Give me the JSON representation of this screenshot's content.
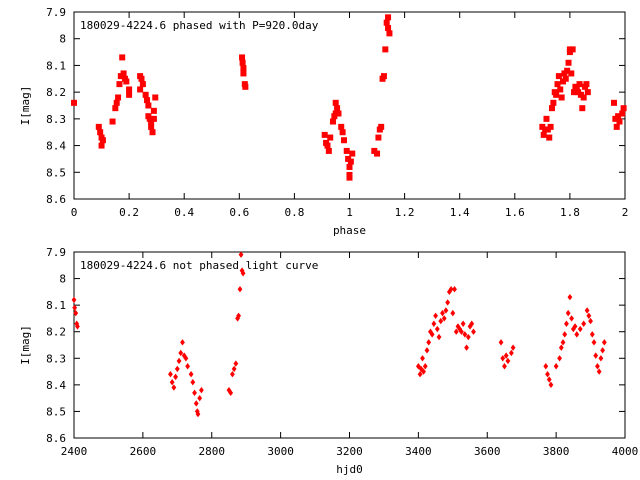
{
  "chart_data": [
    {
      "type": "scatter",
      "title": "180029-4224.6 phased with P=920.0day",
      "xlabel": "phase",
      "ylabel": "I[mag]",
      "xlim": [
        0,
        2
      ],
      "ylim": [
        8.6,
        7.9
      ],
      "y_inverted": true,
      "xticks": [
        "0",
        "0.2",
        "0.4",
        "0.6",
        "0.8",
        "1",
        "1.2",
        "1.4",
        "1.6",
        "1.8",
        "2"
      ],
      "xtick_values": [
        0,
        0.2,
        0.4,
        0.6,
        0.8,
        1.0,
        1.2,
        1.4,
        1.6,
        1.8,
        2.0
      ],
      "yticks": [
        "7.9",
        "8",
        "8.1",
        "8.2",
        "8.3",
        "8.4",
        "8.5",
        "8.6"
      ],
      "ytick_values": [
        7.9,
        8.0,
        8.1,
        8.2,
        8.3,
        8.4,
        8.5,
        8.6
      ],
      "grid": false,
      "marker_color": "#ff0000",
      "series": [
        {
          "points": [
            [
              0.0,
              8.24
            ],
            [
              0.09,
              8.33
            ],
            [
              0.095,
              8.35
            ],
            [
              0.1,
              8.37
            ],
            [
              0.1,
              8.4
            ],
            [
              0.105,
              8.38
            ],
            [
              0.14,
              8.31
            ],
            [
              0.15,
              8.26
            ],
            [
              0.155,
              8.24
            ],
            [
              0.16,
              8.22
            ],
            [
              0.165,
              8.17
            ],
            [
              0.17,
              8.14
            ],
            [
              0.175,
              8.07
            ],
            [
              0.18,
              8.13
            ],
            [
              0.185,
              8.15
            ],
            [
              0.19,
              8.16
            ],
            [
              0.2,
              8.19
            ],
            [
              0.2,
              8.21
            ],
            [
              0.24,
              8.19
            ],
            [
              0.24,
              8.14
            ],
            [
              0.245,
              8.15
            ],
            [
              0.25,
              8.17
            ],
            [
              0.26,
              8.21
            ],
            [
              0.265,
              8.23
            ],
            [
              0.27,
              8.25
            ],
            [
              0.27,
              8.29
            ],
            [
              0.275,
              8.3
            ],
            [
              0.28,
              8.31
            ],
            [
              0.28,
              8.33
            ],
            [
              0.285,
              8.35
            ],
            [
              0.29,
              8.3
            ],
            [
              0.29,
              8.27
            ],
            [
              0.295,
              8.22
            ],
            [
              0.61,
              8.07
            ],
            [
              0.612,
              8.09
            ],
            [
              0.615,
              8.11
            ],
            [
              0.615,
              8.13
            ],
            [
              0.62,
              8.17
            ],
            [
              0.622,
              8.18
            ],
            [
              0.91,
              8.36
            ],
            [
              0.915,
              8.39
            ],
            [
              0.92,
              8.4
            ],
            [
              0.925,
              8.42
            ],
            [
              0.93,
              8.37
            ],
            [
              0.94,
              8.31
            ],
            [
              0.945,
              8.29
            ],
            [
              0.95,
              8.28
            ],
            [
              0.95,
              8.24
            ],
            [
              0.955,
              8.26
            ],
            [
              0.96,
              8.28
            ],
            [
              0.97,
              8.33
            ],
            [
              0.975,
              8.35
            ],
            [
              0.98,
              8.38
            ],
            [
              0.99,
              8.42
            ],
            [
              0.995,
              8.45
            ],
            [
              1.0,
              8.48
            ],
            [
              1.0,
              8.51
            ],
            [
              1.0,
              8.52
            ],
            [
              1.005,
              8.46
            ],
            [
              1.01,
              8.43
            ],
            [
              1.09,
              8.42
            ],
            [
              1.1,
              8.43
            ],
            [
              1.105,
              8.37
            ],
            [
              1.11,
              8.34
            ],
            [
              1.115,
              8.33
            ],
            [
              1.12,
              8.15
            ],
            [
              1.125,
              8.14
            ],
            [
              1.13,
              8.04
            ],
            [
              1.135,
              7.94
            ],
            [
              1.14,
              7.92
            ],
            [
              1.14,
              7.96
            ],
            [
              1.145,
              7.98
            ],
            [
              1.7,
              8.33
            ],
            [
              1.705,
              8.36
            ],
            [
              1.71,
              8.34
            ],
            [
              1.715,
              8.3
            ],
            [
              1.72,
              8.34
            ],
            [
              1.725,
              8.37
            ],
            [
              1.73,
              8.33
            ],
            [
              1.735,
              8.26
            ],
            [
              1.74,
              8.24
            ],
            [
              1.745,
              8.2
            ],
            [
              1.75,
              8.21
            ],
            [
              1.755,
              8.17
            ],
            [
              1.76,
              8.14
            ],
            [
              1.765,
              8.19
            ],
            [
              1.77,
              8.22
            ],
            [
              1.775,
              8.16
            ],
            [
              1.78,
              8.13
            ],
            [
              1.785,
              8.15
            ],
            [
              1.79,
              8.12
            ],
            [
              1.795,
              8.09
            ],
            [
              1.8,
              8.05
            ],
            [
              1.8,
              8.04
            ],
            [
              1.805,
              8.13
            ],
            [
              1.81,
              8.04
            ],
            [
              1.815,
              8.2
            ],
            [
              1.82,
              8.18
            ],
            [
              1.825,
              8.19
            ],
            [
              1.83,
              8.2
            ],
            [
              1.835,
              8.17
            ],
            [
              1.84,
              8.21
            ],
            [
              1.845,
              8.26
            ],
            [
              1.85,
              8.22
            ],
            [
              1.855,
              8.18
            ],
            [
              1.86,
              8.17
            ],
            [
              1.865,
              8.2
            ],
            [
              1.96,
              8.24
            ],
            [
              1.965,
              8.3
            ],
            [
              1.97,
              8.33
            ],
            [
              1.975,
              8.29
            ],
            [
              1.98,
              8.31
            ],
            [
              1.99,
              8.28
            ],
            [
              1.995,
              8.26
            ]
          ]
        }
      ]
    },
    {
      "type": "scatter",
      "title": "180029-4224.6 not phased light curve",
      "xlabel": "hjd0",
      "ylabel": "I[mag]",
      "xlim": [
        2400,
        4000
      ],
      "ylim": [
        8.6,
        7.9
      ],
      "y_inverted": true,
      "xticks": [
        "2400",
        "2600",
        "2800",
        "3000",
        "3200",
        "3400",
        "3600",
        "3800",
        "4000"
      ],
      "xtick_values": [
        2400,
        2600,
        2800,
        3000,
        3200,
        3400,
        3600,
        3800,
        4000
      ],
      "yticks": [
        "7.9",
        "8",
        "8.1",
        "8.2",
        "8.3",
        "8.4",
        "8.5",
        "8.6"
      ],
      "ytick_values": [
        7.9,
        8.0,
        8.1,
        8.2,
        8.3,
        8.4,
        8.5,
        8.6
      ],
      "grid": false,
      "marker_color": "#ff0000",
      "series": [
        {
          "points": [
            [
              2400,
              8.08
            ],
            [
              2402,
              8.11
            ],
            [
              2405,
              8.13
            ],
            [
              2408,
              8.17
            ],
            [
              2410,
              8.18
            ],
            [
              2680,
              8.36
            ],
            [
              2685,
              8.39
            ],
            [
              2690,
              8.41
            ],
            [
              2695,
              8.37
            ],
            [
              2700,
              8.34
            ],
            [
              2705,
              8.31
            ],
            [
              2710,
              8.28
            ],
            [
              2715,
              8.24
            ],
            [
              2720,
              8.29
            ],
            [
              2725,
              8.3
            ],
            [
              2730,
              8.33
            ],
            [
              2740,
              8.36
            ],
            [
              2745,
              8.39
            ],
            [
              2750,
              8.43
            ],
            [
              2755,
              8.47
            ],
            [
              2758,
              8.5
            ],
            [
              2760,
              8.51
            ],
            [
              2765,
              8.45
            ],
            [
              2770,
              8.42
            ],
            [
              2850,
              8.42
            ],
            [
              2855,
              8.43
            ],
            [
              2860,
              8.36
            ],
            [
              2865,
              8.34
            ],
            [
              2870,
              8.32
            ],
            [
              2875,
              8.15
            ],
            [
              2878,
              8.14
            ],
            [
              2882,
              8.04
            ],
            [
              2885,
              7.91
            ],
            [
              2888,
              7.97
            ],
            [
              2891,
              7.98
            ],
            [
              3400,
              8.33
            ],
            [
              3405,
              8.36
            ],
            [
              3408,
              8.34
            ],
            [
              3412,
              8.3
            ],
            [
              3415,
              8.35
            ],
            [
              3420,
              8.33
            ],
            [
              3425,
              8.27
            ],
            [
              3430,
              8.24
            ],
            [
              3435,
              8.2
            ],
            [
              3440,
              8.21
            ],
            [
              3445,
              8.17
            ],
            [
              3450,
              8.14
            ],
            [
              3455,
              8.19
            ],
            [
              3460,
              8.22
            ],
            [
              3465,
              8.16
            ],
            [
              3470,
              8.13
            ],
            [
              3475,
              8.15
            ],
            [
              3480,
              8.12
            ],
            [
              3485,
              8.09
            ],
            [
              3490,
              8.05
            ],
            [
              3495,
              8.04
            ],
            [
              3500,
              8.13
            ],
            [
              3505,
              8.04
            ],
            [
              3510,
              8.2
            ],
            [
              3515,
              8.18
            ],
            [
              3520,
              8.19
            ],
            [
              3525,
              8.2
            ],
            [
              3530,
              8.17
            ],
            [
              3535,
              8.21
            ],
            [
              3540,
              8.26
            ],
            [
              3545,
              8.22
            ],
            [
              3550,
              8.18
            ],
            [
              3555,
              8.17
            ],
            [
              3560,
              8.2
            ],
            [
              3640,
              8.24
            ],
            [
              3645,
              8.3
            ],
            [
              3650,
              8.33
            ],
            [
              3655,
              8.29
            ],
            [
              3660,
              8.31
            ],
            [
              3670,
              8.28
            ],
            [
              3675,
              8.26
            ],
            [
              3770,
              8.33
            ],
            [
              3775,
              8.36
            ],
            [
              3780,
              8.38
            ],
            [
              3785,
              8.4
            ],
            [
              3800,
              8.33
            ],
            [
              3810,
              8.3
            ],
            [
              3815,
              8.26
            ],
            [
              3820,
              8.24
            ],
            [
              3825,
              8.21
            ],
            [
              3830,
              8.17
            ],
            [
              3835,
              8.13
            ],
            [
              3840,
              8.07
            ],
            [
              3845,
              8.15
            ],
            [
              3850,
              8.19
            ],
            [
              3855,
              8.18
            ],
            [
              3860,
              8.21
            ],
            [
              3870,
              8.19
            ],
            [
              3880,
              8.17
            ],
            [
              3890,
              8.12
            ],
            [
              3895,
              8.14
            ],
            [
              3900,
              8.16
            ],
            [
              3905,
              8.21
            ],
            [
              3910,
              8.24
            ],
            [
              3915,
              8.29
            ],
            [
              3920,
              8.33
            ],
            [
              3925,
              8.35
            ],
            [
              3930,
              8.3
            ],
            [
              3935,
              8.27
            ],
            [
              3940,
              8.24
            ]
          ]
        }
      ]
    }
  ]
}
